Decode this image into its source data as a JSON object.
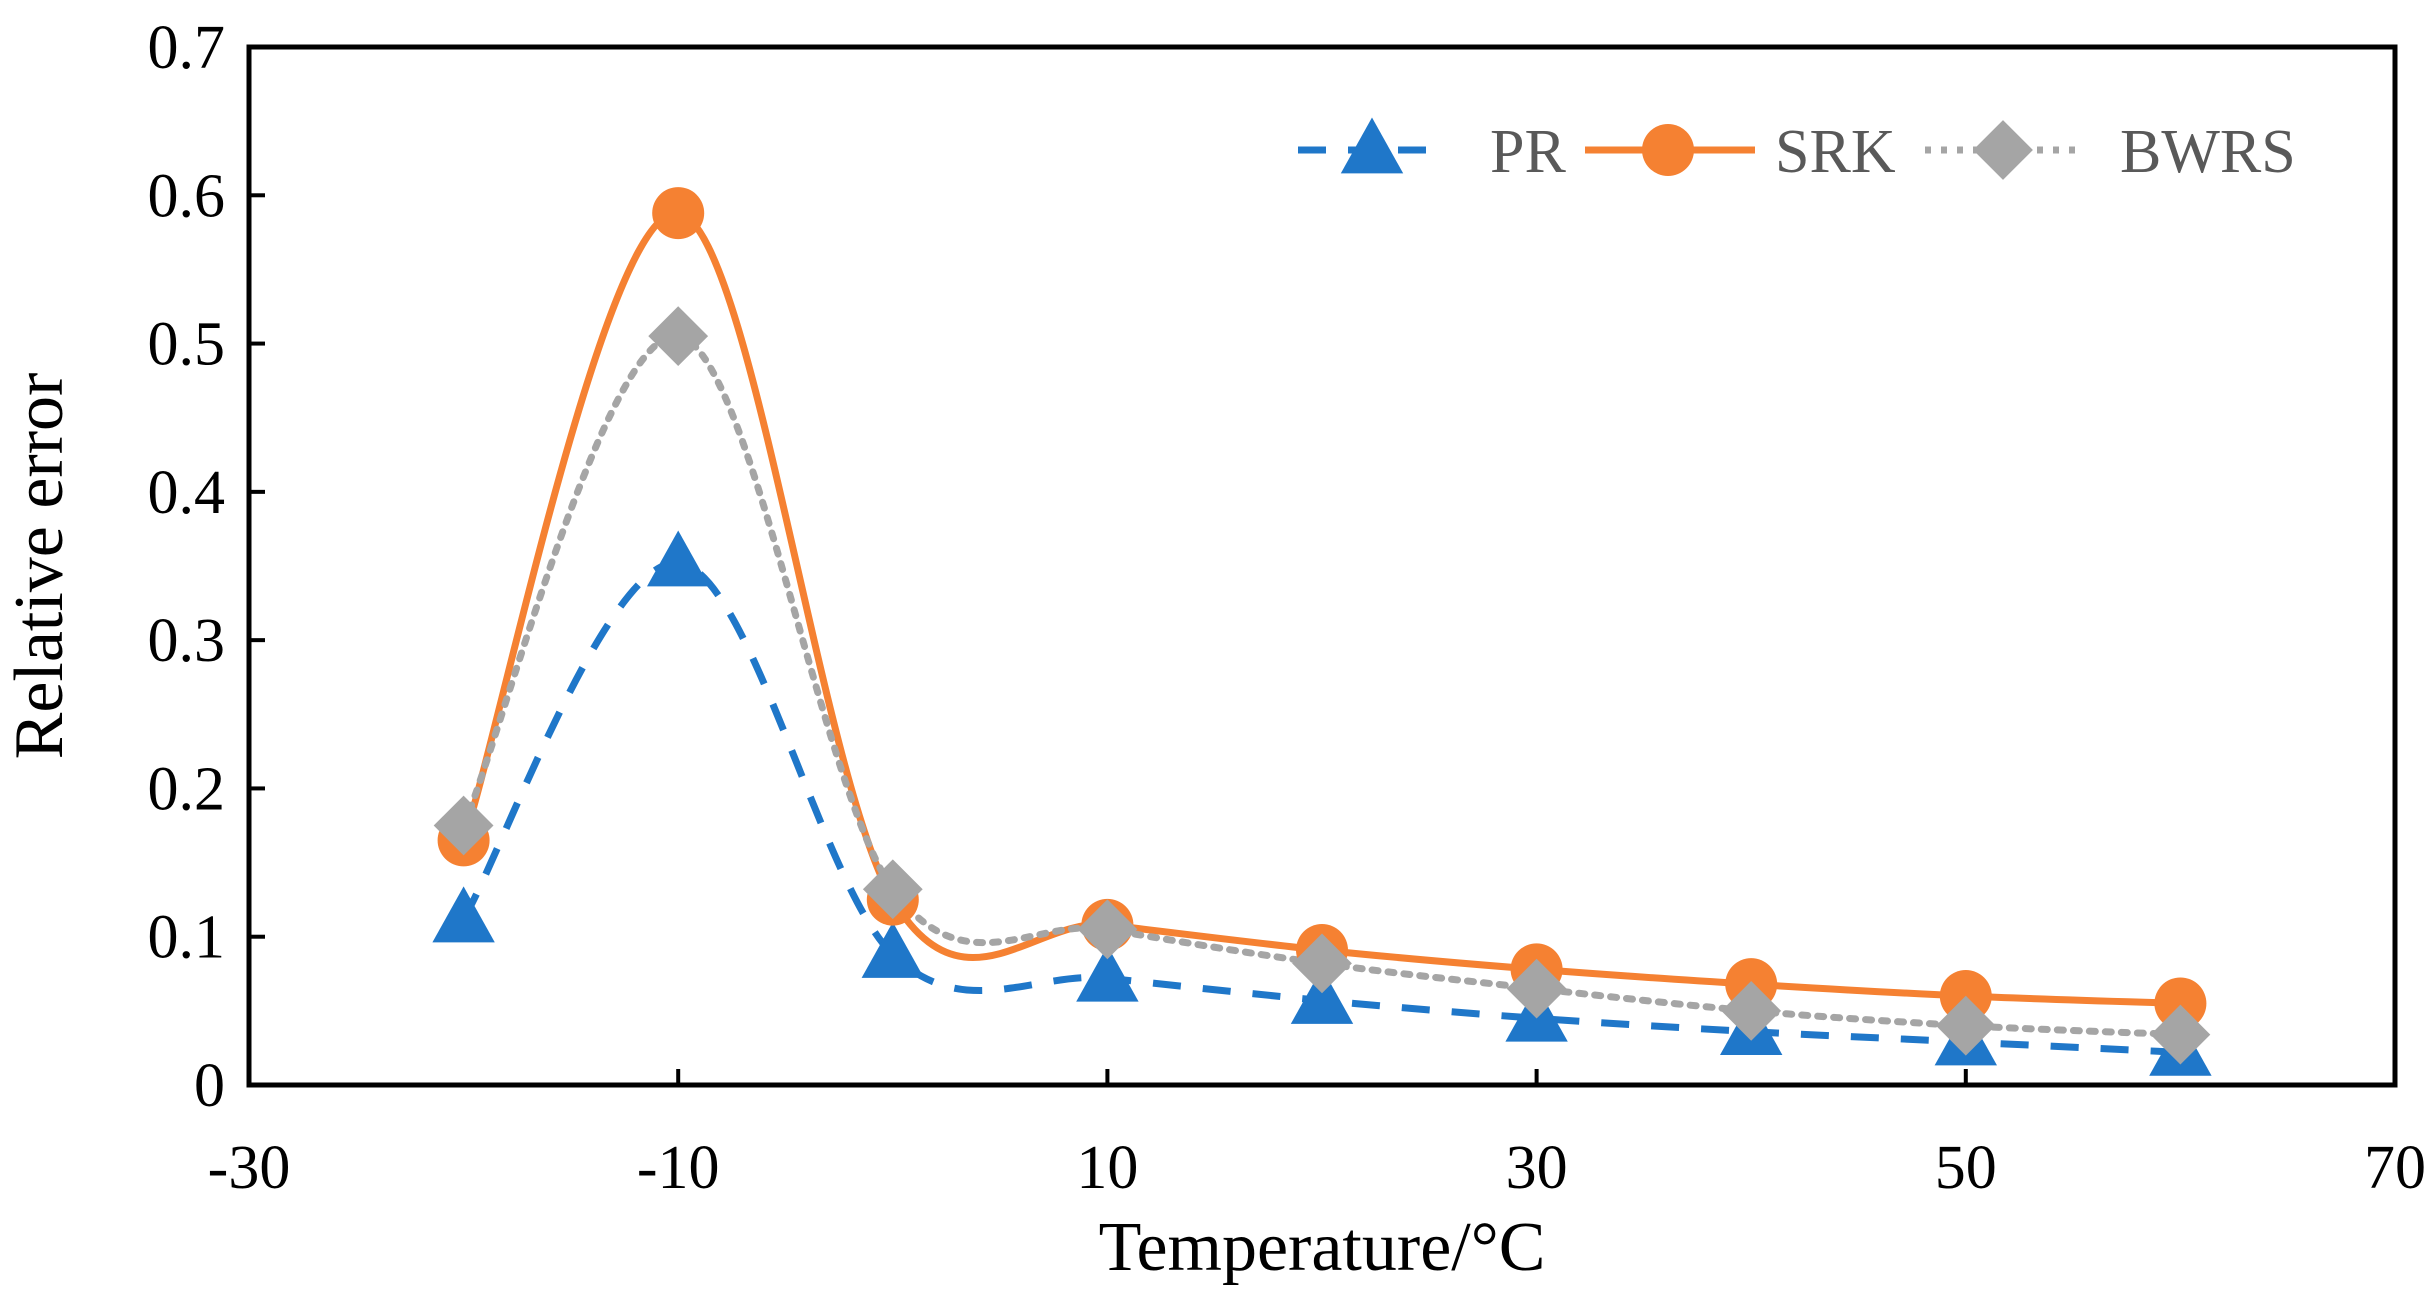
{
  "chart_data": {
    "type": "line",
    "title": "",
    "xlabel": "Temperature/°C",
    "ylabel": "Relative error",
    "xlim": [
      -30,
      70
    ],
    "ylim": [
      0,
      0.7
    ],
    "xticks": [
      -30,
      -10,
      10,
      30,
      50,
      70
    ],
    "yticks": [
      0,
      0.1,
      0.2,
      0.3,
      0.4,
      0.5,
      0.6,
      0.7
    ],
    "xtick_labels": [
      "-30",
      "-10",
      "10",
      "30",
      "50",
      "70"
    ],
    "ytick_labels": [
      "0",
      "0.1",
      "0.2",
      "0.3",
      "0.4",
      "0.5",
      "0.6",
      "0.7"
    ],
    "grid": false,
    "legend_position": "top-right",
    "x": [
      -20,
      -10,
      0,
      10,
      20,
      30,
      40,
      50,
      60
    ],
    "series": [
      {
        "name": "PR",
        "color": "#1f77c9",
        "line_style": "dashed",
        "marker": "triangle",
        "values": [
          0.112,
          0.352,
          0.088,
          0.072,
          0.057,
          0.045,
          0.036,
          0.029,
          0.022
        ]
      },
      {
        "name": "SRK",
        "color": "#f58132",
        "line_style": "solid",
        "marker": "circle",
        "values": [
          0.165,
          0.588,
          0.125,
          0.108,
          0.091,
          0.078,
          0.068,
          0.06,
          0.055
        ]
      },
      {
        "name": "BWRS",
        "color": "#a5a5a5",
        "line_style": "dotted",
        "marker": "diamond",
        "values": [
          0.175,
          0.505,
          0.132,
          0.105,
          0.082,
          0.065,
          0.05,
          0.04,
          0.034
        ]
      }
    ]
  }
}
